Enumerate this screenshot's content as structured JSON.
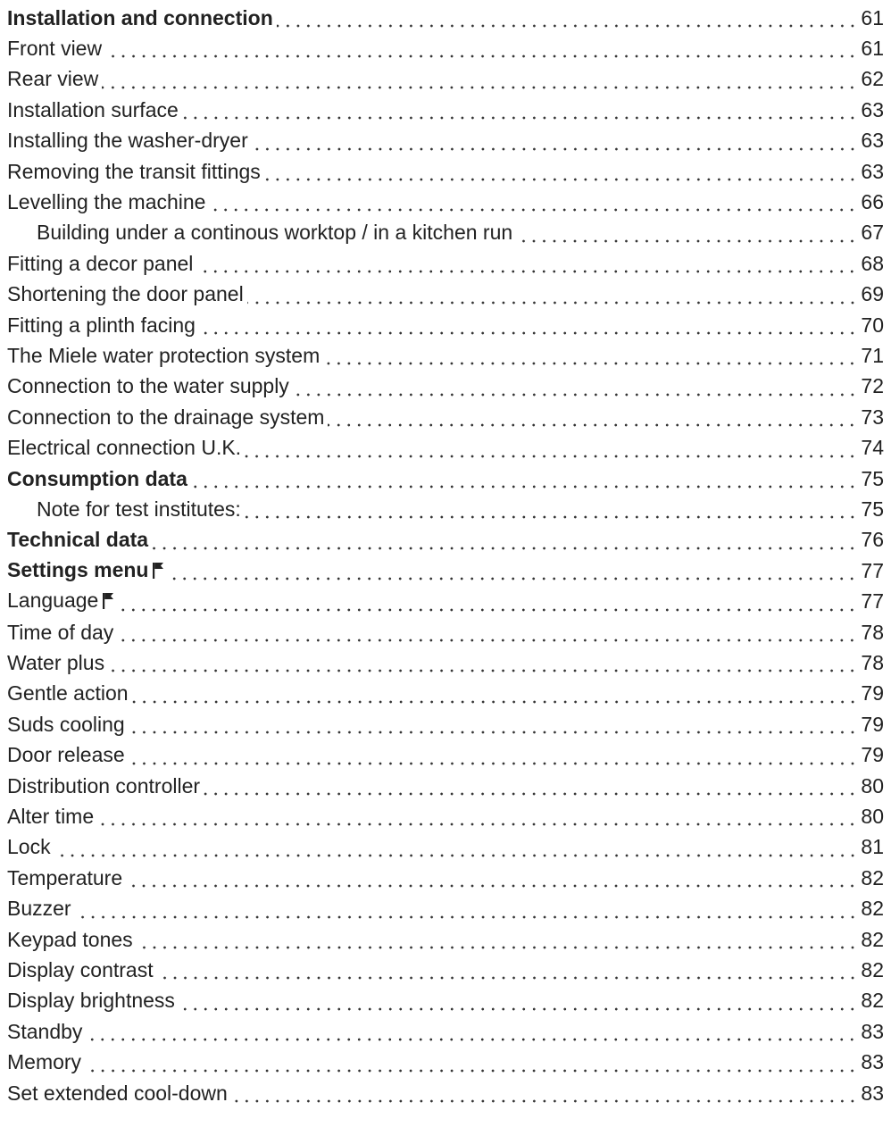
{
  "toc": [
    {
      "title": "Installation and connection",
      "page": "61",
      "bold": true,
      "indent": 0
    },
    {
      "title": "Front view",
      "page": "61",
      "bold": false,
      "indent": 0
    },
    {
      "title": "Rear view",
      "page": "62",
      "bold": false,
      "indent": 0
    },
    {
      "title": "Installation surface",
      "page": "63",
      "bold": false,
      "indent": 0
    },
    {
      "title": "Installing the washer-dryer",
      "page": "63",
      "bold": false,
      "indent": 0
    },
    {
      "title": "Removing the transit fittings",
      "page": "63",
      "bold": false,
      "indent": 0
    },
    {
      "title": "Levelling the machine",
      "page": "66",
      "bold": false,
      "indent": 0
    },
    {
      "title": "Building under a continous worktop / in a kitchen run",
      "page": "67",
      "bold": false,
      "indent": 1
    },
    {
      "title": "Fitting a decor panel",
      "page": "68",
      "bold": false,
      "indent": 0
    },
    {
      "title": "Shortening the door panel",
      "page": "69",
      "bold": false,
      "indent": 0
    },
    {
      "title": "Fitting a plinth facing",
      "page": "70",
      "bold": false,
      "indent": 0
    },
    {
      "title": "The Miele water protection system",
      "page": "71",
      "bold": false,
      "indent": 0
    },
    {
      "title": "Connection to the water supply",
      "page": "72",
      "bold": false,
      "indent": 0
    },
    {
      "title": "Connection to the drainage system",
      "page": "73",
      "bold": false,
      "indent": 0
    },
    {
      "title": "Electrical connection U.K.",
      "page": "74",
      "bold": false,
      "indent": 0
    },
    {
      "title": "Consumption data",
      "page": "75",
      "bold": true,
      "indent": 0
    },
    {
      "title": "Note for test institutes:",
      "page": "75",
      "bold": false,
      "indent": 1
    },
    {
      "title": "Technical data",
      "page": "76",
      "bold": true,
      "indent": 0
    },
    {
      "title": "Settings menu",
      "page": "77",
      "bold": true,
      "indent": 0,
      "icon": "flag-icon"
    },
    {
      "title": "Language",
      "page": "77",
      "bold": false,
      "indent": 0,
      "icon": "flag-icon"
    },
    {
      "title": "Time of day",
      "page": "78",
      "bold": false,
      "indent": 0
    },
    {
      "title": "Water plus",
      "page": "78",
      "bold": false,
      "indent": 0
    },
    {
      "title": "Gentle action",
      "page": "79",
      "bold": false,
      "indent": 0
    },
    {
      "title": "Suds cooling",
      "page": "79",
      "bold": false,
      "indent": 0
    },
    {
      "title": "Door release",
      "page": "79",
      "bold": false,
      "indent": 0
    },
    {
      "title": "Distribution controller",
      "page": "80",
      "bold": false,
      "indent": 0
    },
    {
      "title": "Alter time",
      "page": "80",
      "bold": false,
      "indent": 0
    },
    {
      "title": "Lock",
      "page": "81",
      "bold": false,
      "indent": 0
    },
    {
      "title": "Temperature",
      "page": "82",
      "bold": false,
      "indent": 0
    },
    {
      "title": "Buzzer",
      "page": "82",
      "bold": false,
      "indent": 0
    },
    {
      "title": "Keypad tones",
      "page": "82",
      "bold": false,
      "indent": 0
    },
    {
      "title": "Display contrast",
      "page": "82",
      "bold": false,
      "indent": 0
    },
    {
      "title": "Display brightness",
      "page": "82",
      "bold": false,
      "indent": 0
    },
    {
      "title": "Standby",
      "page": "83",
      "bold": false,
      "indent": 0
    },
    {
      "title": "Memory",
      "page": "83",
      "bold": false,
      "indent": 0
    },
    {
      "title": "Set extended cool-down",
      "page": "83",
      "bold": false,
      "indent": 0
    }
  ],
  "colors": {
    "text": "#222222",
    "dots": "#333333"
  }
}
